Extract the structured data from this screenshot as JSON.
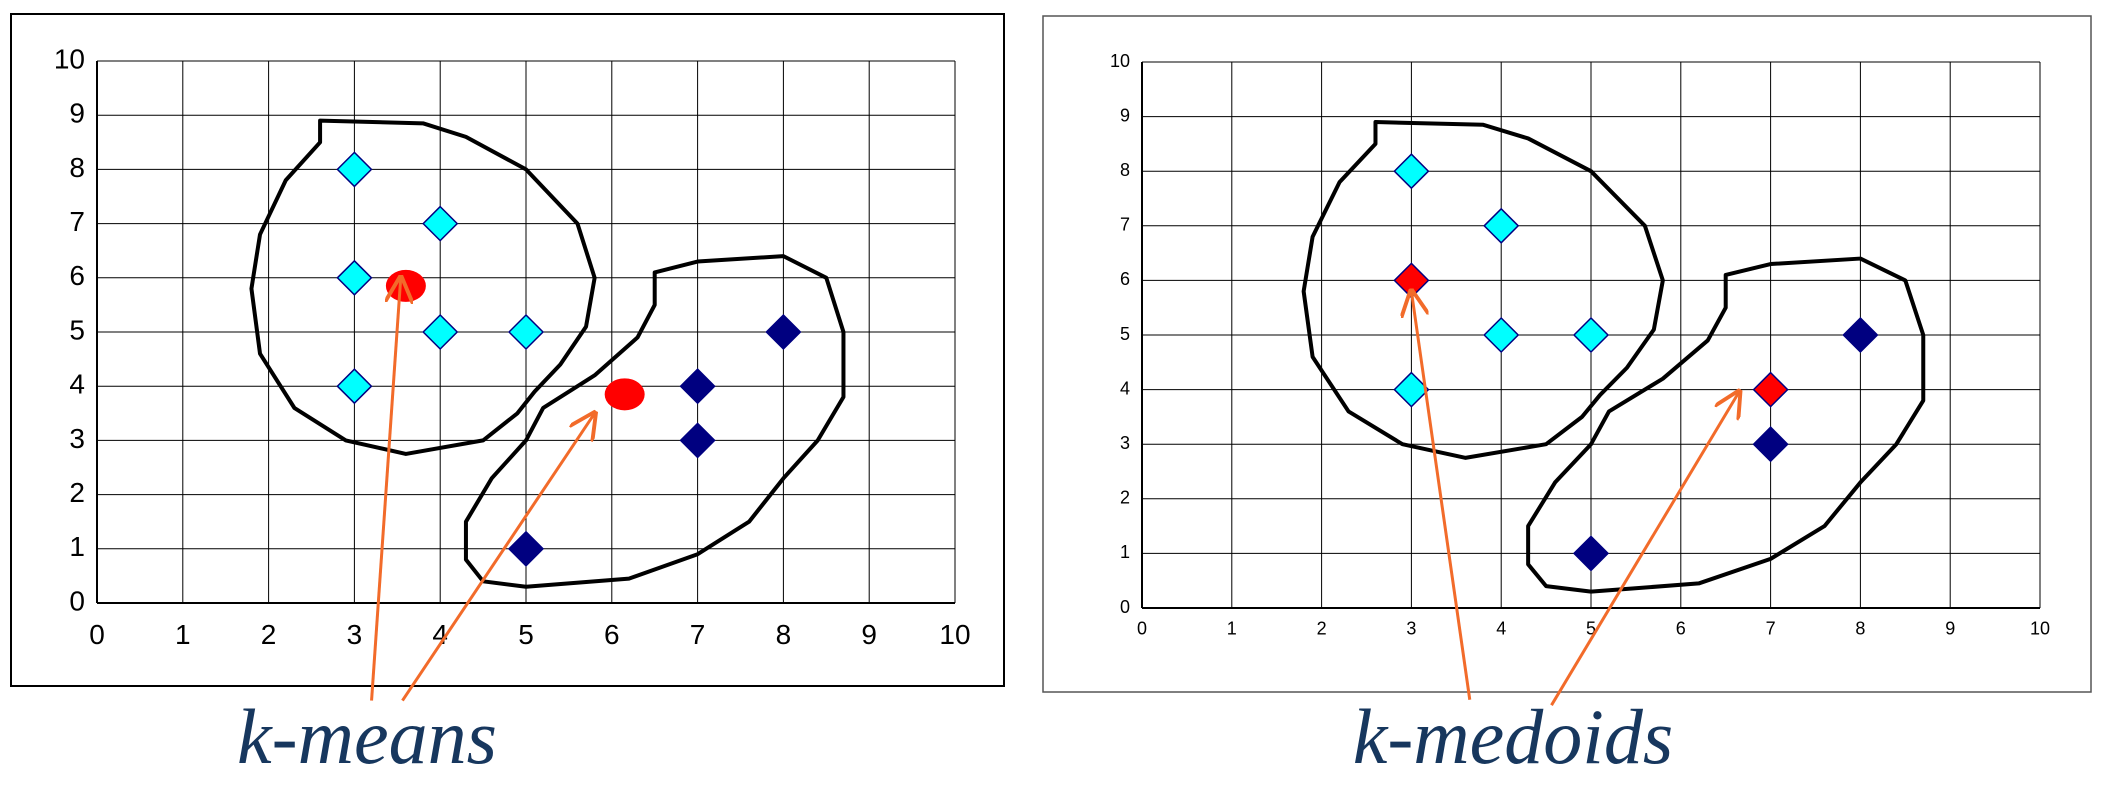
{
  "chart_data": [
    {
      "type": "scatter",
      "caption": "k-means",
      "xlim": [
        0,
        10
      ],
      "ylim": [
        0,
        10
      ],
      "xticks": [
        0,
        1,
        2,
        3,
        4,
        5,
        6,
        7,
        8,
        9,
        10
      ],
      "yticks": [
        0,
        1,
        2,
        3,
        4,
        5,
        6,
        7,
        8,
        9,
        10
      ],
      "grid": true,
      "series": [
        {
          "color": "#00ffff",
          "marker": "diamond",
          "x": [
            3,
            4,
            3,
            4,
            5,
            3
          ],
          "values": [
            8,
            7,
            6,
            5,
            5,
            4
          ]
        },
        {
          "color": "#000080",
          "marker": "diamond",
          "x": [
            8,
            7,
            7,
            5
          ],
          "values": [
            5,
            4,
            3,
            1
          ]
        },
        {
          "color": "#ff0000",
          "marker": "circle",
          "x": [
            3.6,
            6.15
          ],
          "values": [
            5.85,
            3.85
          ]
        }
      ]
    },
    {
      "type": "scatter",
      "caption": "k-medoids",
      "xlim": [
        0,
        10
      ],
      "ylim": [
        0,
        10
      ],
      "xticks": [
        0,
        1,
        2,
        3,
        4,
        5,
        6,
        7,
        8,
        9,
        10
      ],
      "yticks": [
        0,
        1,
        2,
        3,
        4,
        5,
        6,
        7,
        8,
        9,
        10
      ],
      "grid": true,
      "series": [
        {
          "color": "#00ffff",
          "marker": "diamond",
          "x": [
            3,
            4,
            4,
            5,
            3
          ],
          "values": [
            8,
            7,
            5,
            5,
            4
          ]
        },
        {
          "color": "#000080",
          "marker": "diamond",
          "x": [
            8,
            7,
            5
          ],
          "values": [
            5,
            3,
            1
          ]
        },
        {
          "color": "#ff0000",
          "marker": "diamond",
          "x": [
            3,
            7
          ],
          "values": [
            6,
            4
          ]
        }
      ]
    }
  ]
}
